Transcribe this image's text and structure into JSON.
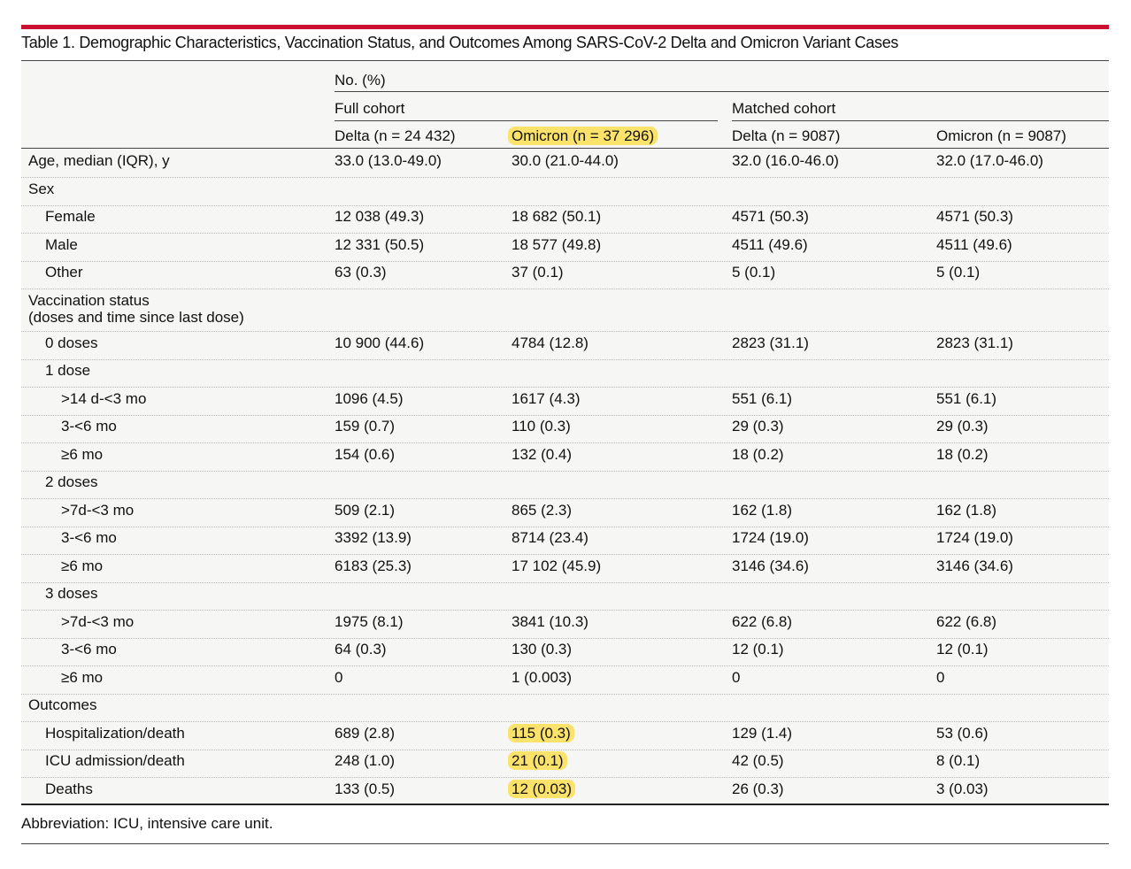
{
  "title": "Table 1. Demographic Characteristics, Vaccination Status, and Outcomes Among SARS-CoV-2 Delta and Omicron Variant Cases",
  "header": {
    "no_pct": "No. (%)",
    "full_cohort": "Full cohort",
    "matched_cohort": "Matched cohort",
    "columns": [
      "Delta (n = 24 432)",
      "Omicron (n = 37 296)",
      "Delta (n = 9087)",
      "Omicron (n = 9087)"
    ]
  },
  "rows": [
    {
      "label": "Age, median (IQR), y",
      "indent": 0,
      "values": [
        "33.0 (13.0-49.0)",
        "30.0 (21.0-44.0)",
        "32.0 (16.0-46.0)",
        "32.0 (17.0-46.0)"
      ]
    },
    {
      "label": "Sex",
      "indent": 0,
      "values": [
        "",
        "",
        "",
        ""
      ]
    },
    {
      "label": "Female",
      "indent": 1,
      "values": [
        "12 038 (49.3)",
        "18 682 (50.1)",
        "4571 (50.3)",
        "4571 (50.3)"
      ]
    },
    {
      "label": "Male",
      "indent": 1,
      "values": [
        "12 331 (50.5)",
        "18 577 (49.8)",
        "4511 (49.6)",
        "4511 (49.6)"
      ]
    },
    {
      "label": "Other",
      "indent": 1,
      "values": [
        "63 (0.3)",
        "37 (0.1)",
        "5 (0.1)",
        "5 (0.1)"
      ]
    },
    {
      "label": "Vaccination status",
      "label2": "(doses and time since last dose)",
      "indent": 0,
      "values": [
        "",
        "",
        "",
        ""
      ]
    },
    {
      "label": "0 doses",
      "indent": 1,
      "values": [
        "10 900 (44.6)",
        "4784 (12.8)",
        "2823 (31.1)",
        "2823 (31.1)"
      ]
    },
    {
      "label": "1 dose",
      "indent": 1,
      "values": [
        "",
        "",
        "",
        ""
      ]
    },
    {
      "label": ">14 d-<3 mo",
      "indent": 2,
      "values": [
        "1096 (4.5)",
        "1617 (4.3)",
        "551 (6.1)",
        "551 (6.1)"
      ]
    },
    {
      "label": "3-<6 mo",
      "indent": 2,
      "values": [
        "159 (0.7)",
        "110 (0.3)",
        "29 (0.3)",
        "29 (0.3)"
      ]
    },
    {
      "label": "≥6 mo",
      "indent": 2,
      "values": [
        "154 (0.6)",
        "132 (0.4)",
        "18 (0.2)",
        "18 (0.2)"
      ]
    },
    {
      "label": "2 doses",
      "indent": 1,
      "values": [
        "",
        "",
        "",
        ""
      ]
    },
    {
      "label": ">7d-<3 mo",
      "indent": 2,
      "values": [
        "509 (2.1)",
        "865 (2.3)",
        "162 (1.8)",
        "162 (1.8)"
      ]
    },
    {
      "label": "3-<6 mo",
      "indent": 2,
      "values": [
        "3392 (13.9)",
        "8714 (23.4)",
        "1724 (19.0)",
        "1724 (19.0)"
      ]
    },
    {
      "label": "≥6 mo",
      "indent": 2,
      "values": [
        "6183 (25.3)",
        "17 102 (45.9)",
        "3146 (34.6)",
        "3146 (34.6)"
      ]
    },
    {
      "label": "3 doses",
      "indent": 1,
      "values": [
        "",
        "",
        "",
        ""
      ]
    },
    {
      "label": ">7d-<3 mo",
      "indent": 2,
      "values": [
        "1975 (8.1)",
        "3841 (10.3)",
        "622 (6.8)",
        "622 (6.8)"
      ]
    },
    {
      "label": "3-<6 mo",
      "indent": 2,
      "values": [
        "64 (0.3)",
        "130 (0.3)",
        "12 (0.1)",
        "12 (0.1)"
      ]
    },
    {
      "label": "≥6 mo",
      "indent": 2,
      "values": [
        "0",
        "1 (0.003)",
        "0",
        "0"
      ]
    },
    {
      "label": "Outcomes",
      "indent": 0,
      "values": [
        "",
        "",
        "",
        ""
      ]
    },
    {
      "label": "Hospitalization/death",
      "indent": 1,
      "values": [
        "689 (2.8)",
        "115 (0.3)",
        "129 (1.4)",
        "53 (0.6)"
      ],
      "highlight": [
        1
      ]
    },
    {
      "label": "ICU admission/death",
      "indent": 1,
      "values": [
        "248 (1.0)",
        "21 (0.1)",
        "42 (0.5)",
        "8 (0.1)"
      ],
      "highlight": [
        1
      ]
    },
    {
      "label": "Deaths",
      "indent": 1,
      "values": [
        "133 (0.5)",
        "12 (0.03)",
        "26 (0.3)",
        "3 (0.03)"
      ],
      "highlight": [
        1
      ]
    }
  ],
  "highlight_color": "#fbe36b",
  "accent_color": "#c8102e",
  "footnote": "Abbreviation: ICU, intensive care unit."
}
